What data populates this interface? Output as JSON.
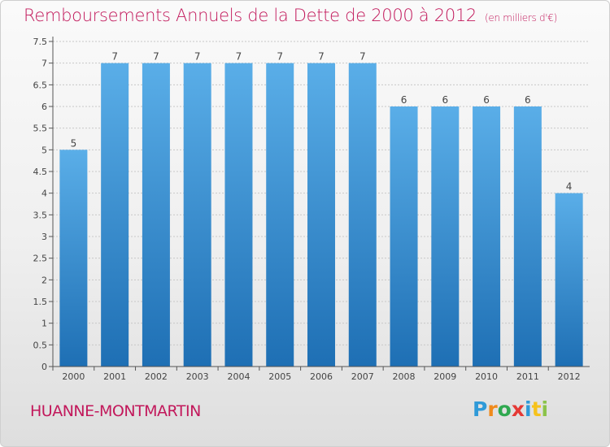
{
  "header": {
    "title": "Remboursements Annuels de la Dette de 2000 à 2012",
    "unit": "(en milliers d'€)"
  },
  "footer": {
    "commune": "HUANNE-MONTMARTIN",
    "brand_letters": [
      {
        "ch": "P",
        "color": "#2f9ad8"
      },
      {
        "ch": "r",
        "color": "#f08a1c"
      },
      {
        "ch": "o",
        "color": "#2fa84f"
      },
      {
        "ch": "x",
        "color": "#e53935"
      },
      {
        "ch": "i",
        "color": "#2f9ad8"
      },
      {
        "ch": "t",
        "color": "#f6c21c"
      },
      {
        "ch": "i",
        "color": "#8bc34a"
      }
    ]
  },
  "colors": {
    "bar_light": "#5aaee8",
    "bar_dark": "#1e6fb4",
    "title": "#c2185b",
    "grid": "#c8c8c8"
  },
  "chart_data": {
    "type": "bar",
    "title": "Remboursements Annuels de la Dette de 2000 à 2012",
    "subtitle": "(en milliers d'€)",
    "categories": [
      "2000",
      "2001",
      "2002",
      "2003",
      "2004",
      "2005",
      "2006",
      "2007",
      "2008",
      "2009",
      "2010",
      "2011",
      "2012"
    ],
    "values": [
      5,
      7,
      7,
      7,
      7,
      7,
      7,
      7,
      6,
      6,
      6,
      6,
      4
    ],
    "ylim": [
      0,
      7.5
    ],
    "yticks": [
      {
        "v": 0,
        "label": "0"
      },
      {
        "v": 0.5,
        "label": "0.5"
      },
      {
        "v": 1,
        "label": "1"
      },
      {
        "v": 1.5,
        "label": "1.5"
      },
      {
        "v": 2,
        "label": "2"
      },
      {
        "v": 2.5,
        "label": "2.5"
      },
      {
        "v": 3,
        "label": "3"
      },
      {
        "v": 3.5,
        "label": "3.5"
      },
      {
        "v": 4,
        "label": "4"
      },
      {
        "v": 4.5,
        "label": "4.5"
      },
      {
        "v": 5,
        "label": "5"
      },
      {
        "v": 5.5,
        "label": "5.5"
      },
      {
        "v": 6,
        "label": "6"
      },
      {
        "v": 6.5,
        "label": "6.5"
      },
      {
        "v": 7,
        "label": "7"
      },
      {
        "v": 7.5,
        "label": "7.5"
      }
    ],
    "grid": true,
    "data_labels": true
  }
}
